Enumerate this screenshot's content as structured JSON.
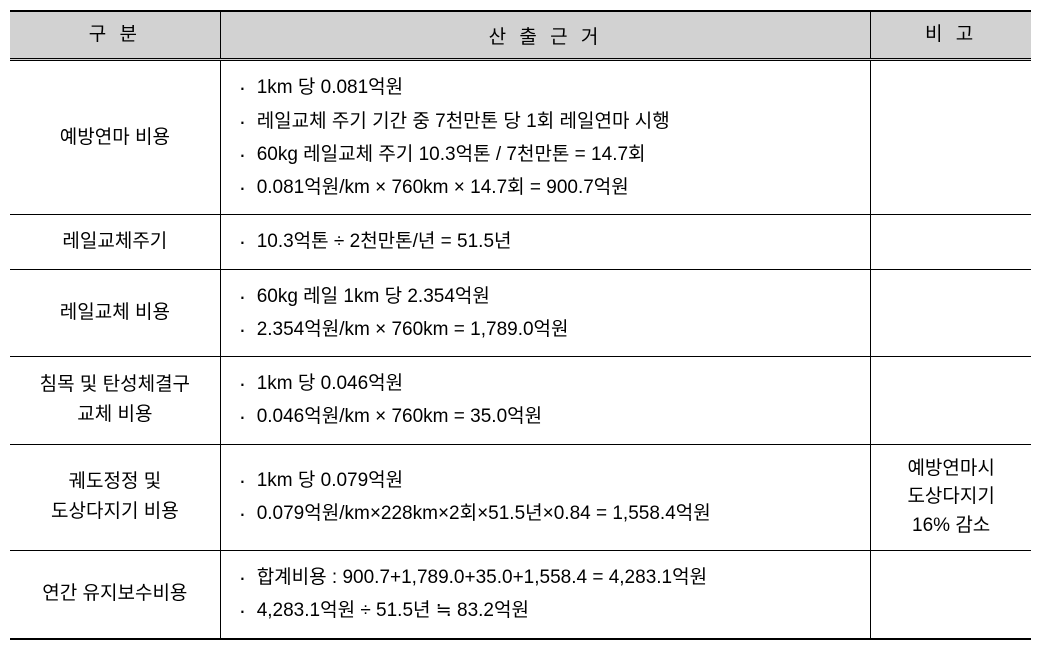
{
  "table": {
    "headers": {
      "category": "구 분",
      "basis": "산 출 근 거",
      "note": "비 고"
    },
    "rows": [
      {
        "category": "예방연마 비용",
        "basis": [
          "1km 당 0.081억원",
          "레일교체 주기 기간 중 7천만톤 당 1회 레일연마 시행",
          "60kg 레일교체 주기 10.3억톤 / 7천만톤 = 14.7회",
          "0.081억원/km × 760km × 14.7회 = 900.7억원"
        ],
        "note": ""
      },
      {
        "category": "레일교체주기",
        "basis": [
          "10.3억톤 ÷ 2천만톤/년 = 51.5년"
        ],
        "note": ""
      },
      {
        "category": "레일교체 비용",
        "basis": [
          "60kg 레일 1km 당 2.354억원",
          "2.354억원/km × 760km = 1,789.0억원"
        ],
        "note": ""
      },
      {
        "category": "침목 및 탄성체결구\n교체 비용",
        "basis": [
          "1km 당 0.046억원",
          "0.046억원/km × 760km = 35.0억원"
        ],
        "note": ""
      },
      {
        "category": "궤도정정 및\n도상다지기 비용",
        "basis": [
          "1km 당 0.079억원",
          "0.079억원/km×228km×2회×51.5년×0.84 = 1,558.4억원"
        ],
        "note": "예방연마시\n도상다지기\n16% 감소"
      },
      {
        "category": "연간 유지보수비용",
        "basis": [
          "합계비용 : 900.7+1,789.0+35.0+1,558.4 = 4,283.1억원",
          "4,283.1억원 ÷ 51.5년 ≒ 83.2억원"
        ],
        "note": ""
      }
    ]
  }
}
